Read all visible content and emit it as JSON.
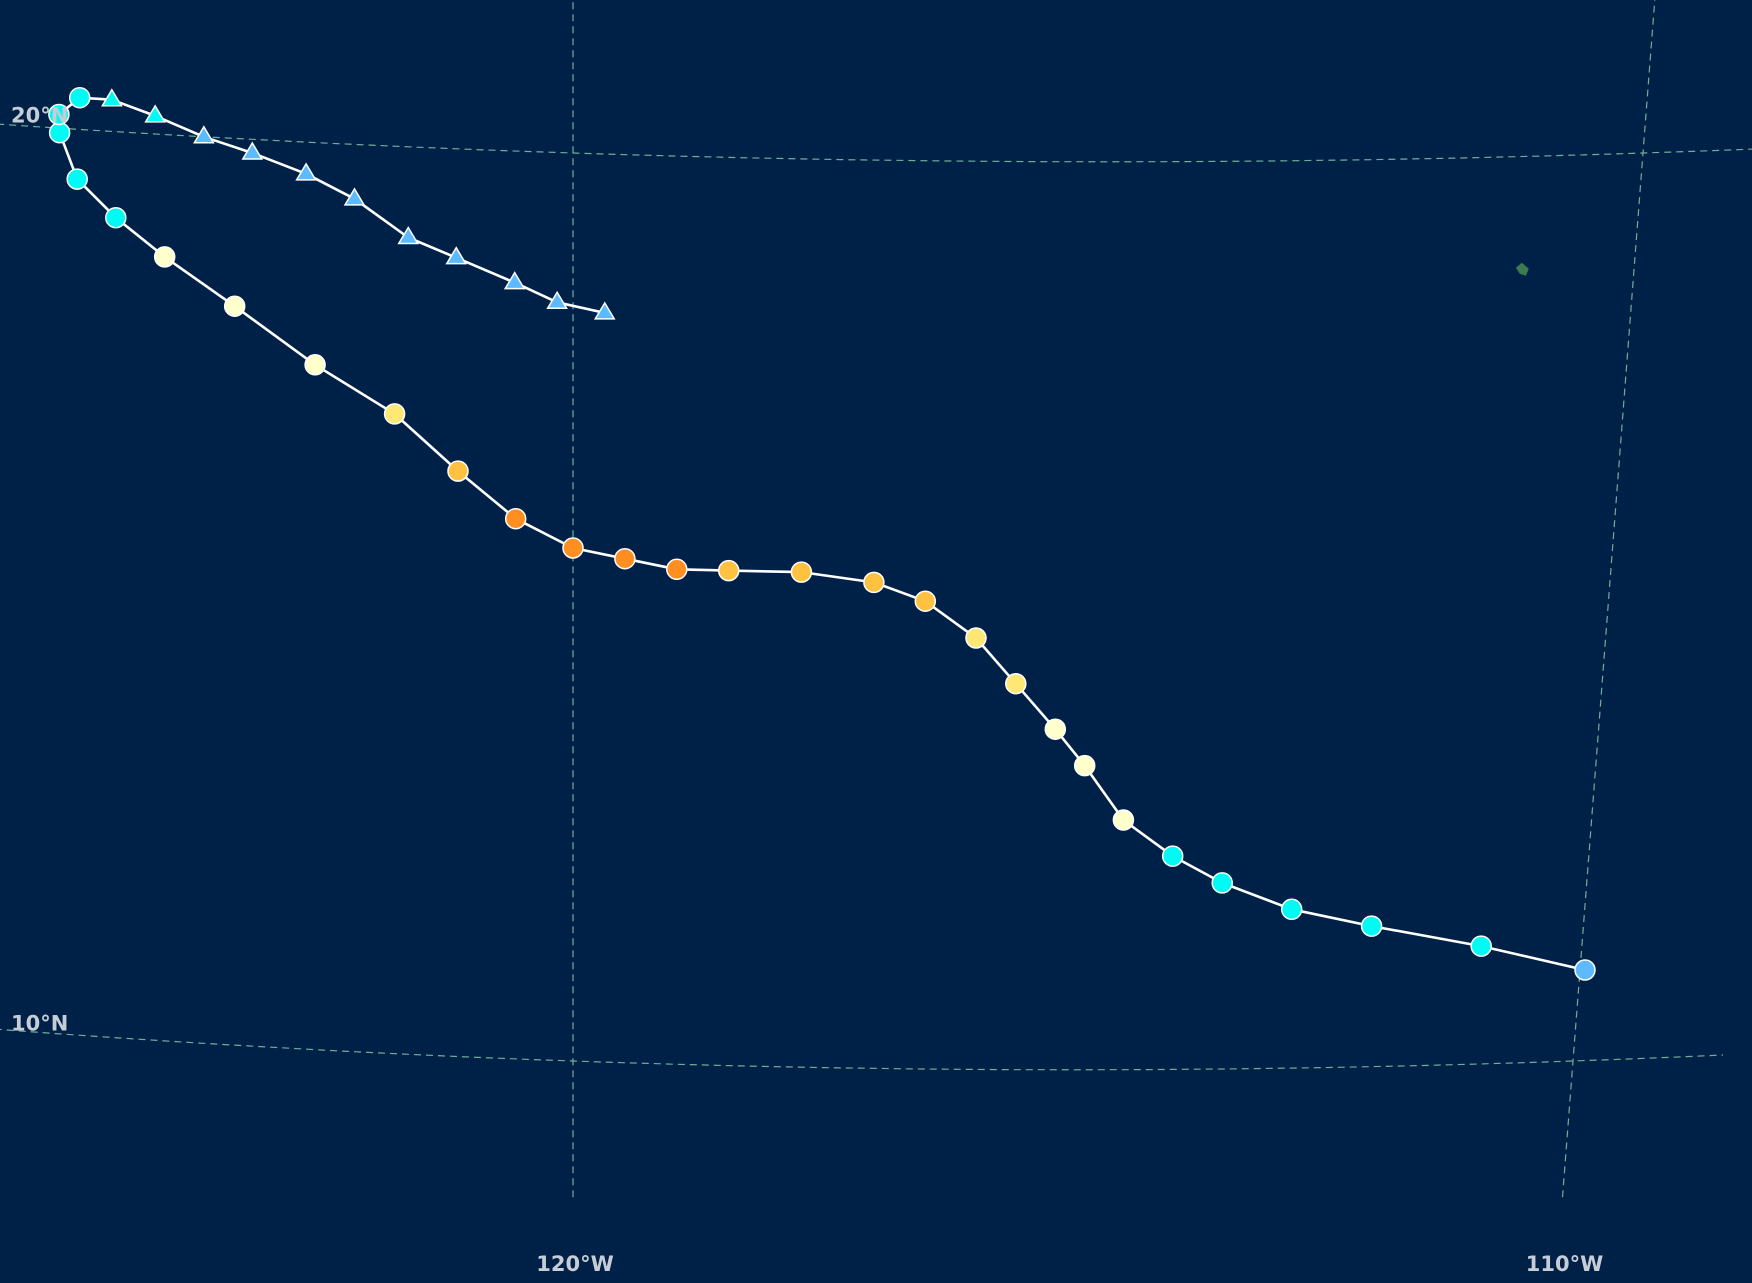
{
  "map": {
    "background_color": "#002147",
    "graticule_color": "#6fae99",
    "label_color": "#c6cdd6",
    "track_line_color": "#ffffff",
    "land_color": "#3d7a52",
    "latitude_labels": [
      {
        "value": 20,
        "text": "20°N"
      },
      {
        "value": 10,
        "text": "10°N"
      }
    ],
    "longitude_labels": [
      {
        "value": -120,
        "text": "120°W"
      },
      {
        "value": -110,
        "text": "110°W"
      }
    ],
    "legend_colors": {
      "tropical_depression": "#5ebaff",
      "tropical_storm": "#00faf4",
      "category_1": "#ffffcc",
      "category_2": "#ffe775",
      "category_3": "#ffc140",
      "category_4": "#ff8f20"
    },
    "marker_shapes": {
      "tropical_cyclone": "circle",
      "post_tropical": "triangle"
    }
  },
  "track": {
    "points": [
      {
        "lon": -109.95,
        "lat": 11.0,
        "cat": "tropical_depression",
        "shape": "circle"
      },
      {
        "lon": -111.0,
        "lat": 11.3,
        "cat": "tropical_storm",
        "shape": "circle"
      },
      {
        "lon": -112.1,
        "lat": 11.55,
        "cat": "tropical_storm",
        "shape": "circle"
      },
      {
        "lon": -112.9,
        "lat": 11.75,
        "cat": "tropical_storm",
        "shape": "circle"
      },
      {
        "lon": -113.6,
        "lat": 12.05,
        "cat": "tropical_storm",
        "shape": "circle"
      },
      {
        "lon": -114.1,
        "lat": 12.35,
        "cat": "tropical_storm",
        "shape": "circle"
      },
      {
        "lon": -114.6,
        "lat": 12.75,
        "cat": "category_1",
        "shape": "circle"
      },
      {
        "lon": -115.0,
        "lat": 13.35,
        "cat": "category_1",
        "shape": "circle"
      },
      {
        "lon": -115.3,
        "lat": 13.75,
        "cat": "category_1",
        "shape": "circle"
      },
      {
        "lon": -115.7,
        "lat": 14.25,
        "cat": "category_2",
        "shape": "circle"
      },
      {
        "lon": -116.1,
        "lat": 14.75,
        "cat": "category_2",
        "shape": "circle"
      },
      {
        "lon": -116.6,
        "lat": 15.15,
        "cat": "category_3",
        "shape": "circle"
      },
      {
        "lon": -117.1,
        "lat": 15.35,
        "cat": "category_3",
        "shape": "circle"
      },
      {
        "lon": -117.8,
        "lat": 15.45,
        "cat": "category_3",
        "shape": "circle"
      },
      {
        "lon": -118.5,
        "lat": 15.45,
        "cat": "category_3",
        "shape": "circle"
      },
      {
        "lon": -119.0,
        "lat": 15.45,
        "cat": "category_4",
        "shape": "circle"
      },
      {
        "lon": -119.5,
        "lat": 15.55,
        "cat": "category_4",
        "shape": "circle"
      },
      {
        "lon": -120.0,
        "lat": 15.65,
        "cat": "category_4",
        "shape": "circle"
      },
      {
        "lon": -120.55,
        "lat": 15.95,
        "cat": "category_4",
        "shape": "circle"
      },
      {
        "lon": -121.1,
        "lat": 16.45,
        "cat": "category_3",
        "shape": "circle"
      },
      {
        "lon": -121.7,
        "lat": 17.05,
        "cat": "category_2",
        "shape": "circle"
      },
      {
        "lon": -122.45,
        "lat": 17.55,
        "cat": "category_1",
        "shape": "circle"
      },
      {
        "lon": -123.2,
        "lat": 18.15,
        "cat": "category_1",
        "shape": "circle"
      },
      {
        "lon": -123.85,
        "lat": 18.65,
        "cat": "category_1",
        "shape": "circle"
      },
      {
        "lon": -124.3,
        "lat": 19.05,
        "cat": "tropical_storm",
        "shape": "circle"
      },
      {
        "lon": -124.65,
        "lat": 19.45,
        "cat": "tropical_storm",
        "shape": "circle"
      },
      {
        "lon": -124.8,
        "lat": 19.95,
        "cat": "tropical_storm",
        "shape": "circle"
      },
      {
        "lon": -124.8,
        "lat": 20.15,
        "cat": "tropical_storm",
        "shape": "circle"
      },
      {
        "lon": -124.6,
        "lat": 20.35,
        "cat": "tropical_storm",
        "shape": "circle"
      },
      {
        "lon": -124.3,
        "lat": 20.35,
        "cat": "tropical_storm",
        "shape": "triangle"
      },
      {
        "lon": -123.9,
        "lat": 20.2,
        "cat": "tropical_storm",
        "shape": "triangle"
      },
      {
        "lon": -123.45,
        "lat": 20.0,
        "cat": "tropical_depression",
        "shape": "triangle"
      },
      {
        "lon": -123.0,
        "lat": 19.85,
        "cat": "tropical_depression",
        "shape": "triangle"
      },
      {
        "lon": -122.5,
        "lat": 19.65,
        "cat": "tropical_depression",
        "shape": "triangle"
      },
      {
        "lon": -122.05,
        "lat": 19.4,
        "cat": "tropical_depression",
        "shape": "triangle"
      },
      {
        "lon": -121.55,
        "lat": 19.0,
        "cat": "tropical_depression",
        "shape": "triangle"
      },
      {
        "lon": -121.1,
        "lat": 18.8,
        "cat": "tropical_depression",
        "shape": "triangle"
      },
      {
        "lon": -120.55,
        "lat": 18.55,
        "cat": "tropical_depression",
        "shape": "triangle"
      },
      {
        "lon": -120.15,
        "lat": 18.35,
        "cat": "tropical_depression",
        "shape": "triangle"
      },
      {
        "lon": -119.7,
        "lat": 18.25,
        "cat": "tropical_depression",
        "shape": "triangle"
      }
    ]
  },
  "land": [
    {
      "name": "small-island",
      "lon": -111.05,
      "lat": 18.75
    }
  ]
}
